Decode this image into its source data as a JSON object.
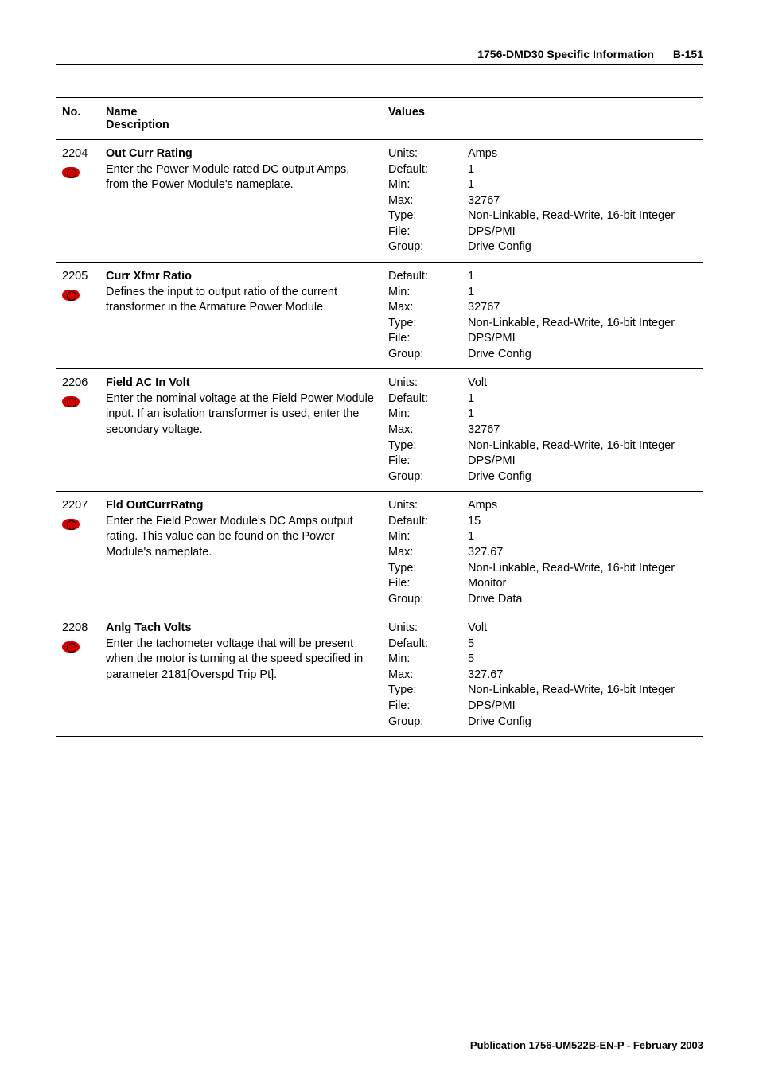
{
  "header": {
    "title": "1756-DMD30 Specific Information",
    "page": "B-151"
  },
  "table": {
    "head": {
      "no": "No.",
      "name_line1": "Name",
      "name_line2": "Description",
      "values": "Values"
    },
    "rows": [
      {
        "no": "2204",
        "name": "Out Curr Rating",
        "desc": "Enter the Power Module rated DC output Amps, from the Power Module's nameplate.",
        "labels": "Units:\nDefault:\nMin:\nMax:\nType:\nFile:\nGroup:",
        "values": "Amps\n1\n1\n32767\nNon-Linkable, Read-Write, 16-bit Integer\nDPS/PMI\nDrive Config"
      },
      {
        "no": "2205",
        "name": "Curr Xfmr Ratio",
        "desc": "Defines the input to output ratio of the current transformer in the Armature Power Module.",
        "labels": "Default:\nMin:\nMax:\nType:\nFile:\nGroup:",
        "values": "1\n1\n32767\nNon-Linkable, Read-Write, 16-bit Integer\nDPS/PMI\nDrive Config"
      },
      {
        "no": "2206",
        "name": "Field AC In Volt",
        "desc": "Enter the nominal voltage at the Field Power Module input. If an isolation transformer is used, enter the secondary voltage.",
        "labels": "Units:\nDefault:\nMin:\nMax:\nType:\nFile:\nGroup:",
        "values": "Volt\n1\n1\n32767\nNon-Linkable, Read-Write, 16-bit Integer\nDPS/PMI\nDrive Config"
      },
      {
        "no": "2207",
        "name": "Fld OutCurrRatng",
        "desc": "Enter the Field Power Module's DC Amps output rating. This value can be found on the Power Module's nameplate.",
        "labels": "Units:\nDefault:\nMin:\nMax:\nType:\nFile:\nGroup:",
        "values": "Amps\n15\n1\n327.67\nNon-Linkable, Read-Write, 16-bit Integer\nMonitor\nDrive Data"
      },
      {
        "no": "2208",
        "name": "Anlg Tach Volts",
        "desc": "Enter the tachometer voltage that will be present when the motor is turning at the speed specified in parameter 2181[Overspd Trip Pt].",
        "labels": "Units:\nDefault:\nMin:\nMax:\nType:\nFile:\nGroup:",
        "values": "Volt\n5\n5\n327.67\nNon-Linkable, Read-Write, 16-bit Integer\nDPS/PMI\nDrive Config"
      }
    ]
  },
  "footer": "Publication 1756-UM522B-EN-P - February 2003"
}
